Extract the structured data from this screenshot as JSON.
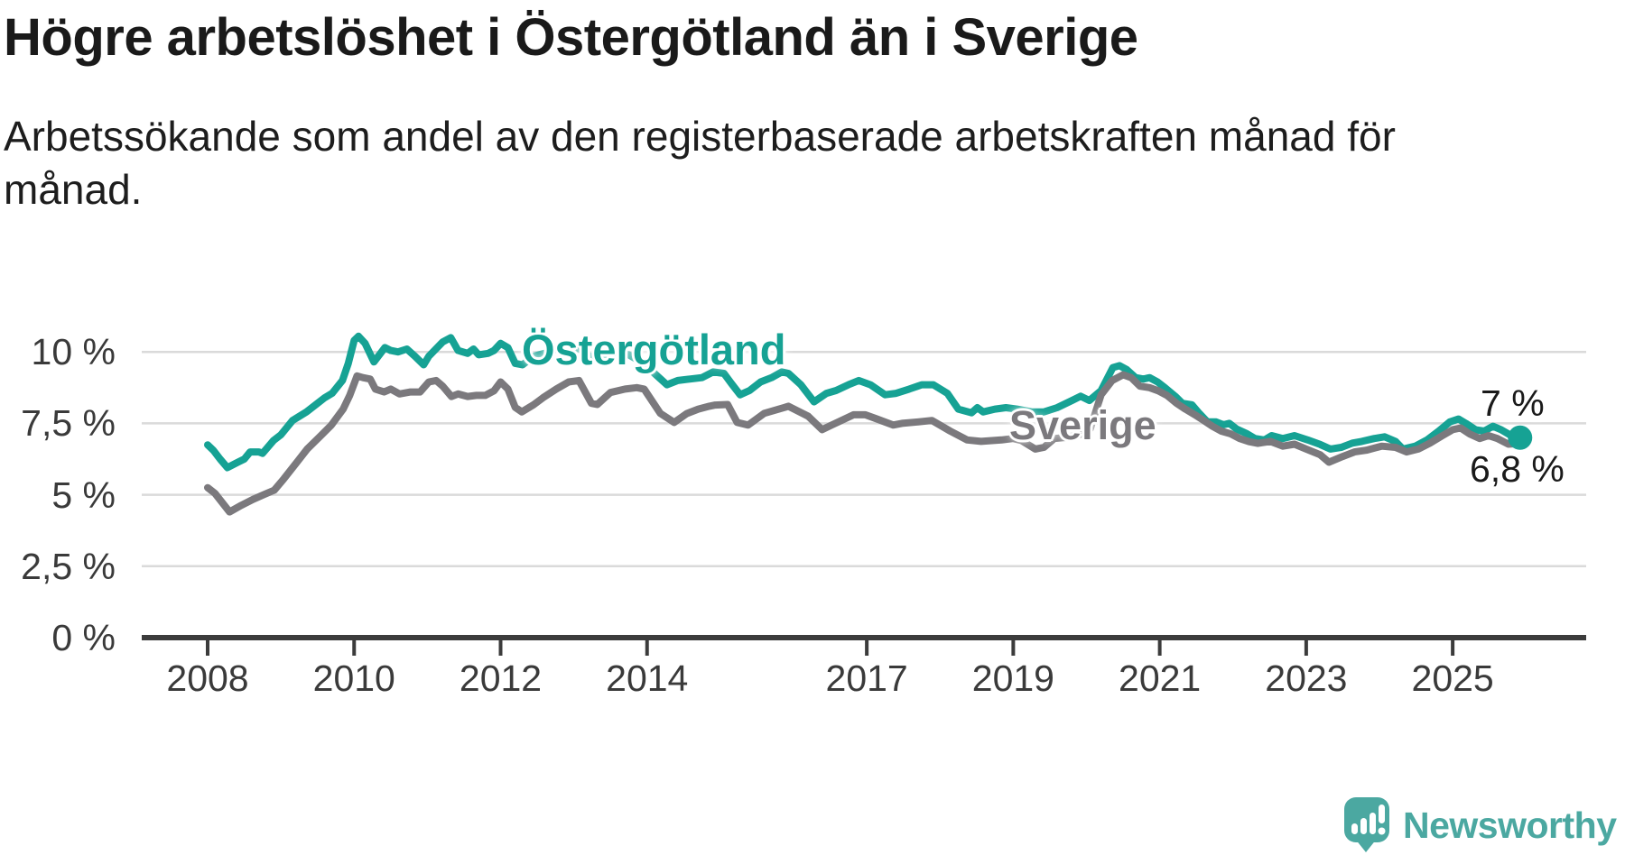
{
  "header": {
    "title": "Högre arbetslöshet i Östergötland än i Sverige",
    "subtitle": "Arbetssökande som andel av den registerbaserade arbetskraften månad för månad."
  },
  "footer": {
    "brand": "Newsworthy",
    "logo_icon": "speech-bubble-bar-chart-icon"
  },
  "colors": {
    "accent_teal": "#16A294",
    "series_gray": "#7B797D",
    "logo_teal": "#4BA8A1",
    "gridline": "#DADADA",
    "axis": "#3C3C3C",
    "text": "#1A1A1A",
    "tick_text": "#3A3A3A"
  },
  "chart_data": {
    "type": "line",
    "title": "Högre arbetslöshet i Östergötland än i Sverige",
    "subtitle": "Arbetssökande som andel av den registerbaserade arbetskraften månad för månad.",
    "xlabel": "",
    "ylabel": "",
    "grid": "horizontal",
    "legend_position": "inline-labels-on-lines",
    "ylim": [
      0,
      12.5
    ],
    "y_axis": {
      "ticks": [
        0,
        2.5,
        5,
        7.5,
        10
      ],
      "tick_labels": [
        "0 %",
        "2,5 %",
        "5 %",
        "7,5 %",
        "10 %"
      ]
    },
    "x_axis": {
      "ticks": [
        2008,
        2010,
        2012,
        2014,
        2017,
        2019,
        2021,
        2023,
        2025
      ],
      "tick_labels": [
        "2008",
        "2010",
        "2012",
        "2014",
        "2017",
        "2019",
        "2021",
        "2023",
        "2025"
      ],
      "data_start": 2008.0,
      "data_end": 2025.92
    },
    "series": [
      {
        "name": "Östergötland",
        "color": "#16A294",
        "end_label": "7 %",
        "end_value": 7.0,
        "end_dot": true,
        "points": [
          [
            2008.0,
            6.75
          ],
          [
            2008.08,
            6.55
          ],
          [
            2008.17,
            6.25
          ],
          [
            2008.27,
            5.95
          ],
          [
            2008.42,
            6.15
          ],
          [
            2008.5,
            6.25
          ],
          [
            2008.58,
            6.5
          ],
          [
            2008.7,
            6.5
          ],
          [
            2008.75,
            6.45
          ],
          [
            2008.9,
            6.9
          ],
          [
            2009.0,
            7.1
          ],
          [
            2009.16,
            7.6
          ],
          [
            2009.35,
            7.9
          ],
          [
            2009.5,
            8.2
          ],
          [
            2009.6,
            8.4
          ],
          [
            2009.7,
            8.55
          ],
          [
            2009.84,
            9.0
          ],
          [
            2009.92,
            9.6
          ],
          [
            2010.0,
            10.4
          ],
          [
            2010.06,
            10.55
          ],
          [
            2010.15,
            10.3
          ],
          [
            2010.27,
            9.65
          ],
          [
            2010.42,
            10.15
          ],
          [
            2010.5,
            10.05
          ],
          [
            2010.6,
            10.0
          ],
          [
            2010.72,
            10.1
          ],
          [
            2010.83,
            9.85
          ],
          [
            2010.95,
            9.55
          ],
          [
            2011.02,
            9.85
          ],
          [
            2011.21,
            10.35
          ],
          [
            2011.32,
            10.5
          ],
          [
            2011.42,
            10.05
          ],
          [
            2011.55,
            9.95
          ],
          [
            2011.63,
            10.1
          ],
          [
            2011.7,
            9.9
          ],
          [
            2011.83,
            9.95
          ],
          [
            2011.91,
            10.05
          ],
          [
            2012.0,
            10.3
          ],
          [
            2012.1,
            10.15
          ],
          [
            2012.2,
            9.6
          ],
          [
            2012.3,
            9.55
          ],
          [
            2012.45,
            9.85
          ],
          [
            2012.6,
            9.95
          ],
          [
            2012.75,
            10.1
          ],
          [
            2012.92,
            10.2
          ],
          [
            2013.08,
            10.1
          ],
          [
            2013.25,
            9.8
          ],
          [
            2013.42,
            9.9
          ],
          [
            2013.58,
            10.0
          ],
          [
            2013.75,
            9.9
          ],
          [
            2013.92,
            9.65
          ],
          [
            2014.1,
            9.25
          ],
          [
            2014.27,
            8.85
          ],
          [
            2014.42,
            9.0
          ],
          [
            2014.58,
            9.05
          ],
          [
            2014.75,
            9.1
          ],
          [
            2014.9,
            9.3
          ],
          [
            2015.05,
            9.25
          ],
          [
            2015.15,
            8.9
          ],
          [
            2015.27,
            8.5
          ],
          [
            2015.4,
            8.65
          ],
          [
            2015.55,
            8.95
          ],
          [
            2015.7,
            9.1
          ],
          [
            2015.84,
            9.3
          ],
          [
            2015.93,
            9.25
          ],
          [
            2016.1,
            8.85
          ],
          [
            2016.28,
            8.25
          ],
          [
            2016.45,
            8.55
          ],
          [
            2016.58,
            8.65
          ],
          [
            2016.75,
            8.85
          ],
          [
            2016.89,
            9.0
          ],
          [
            2017.05,
            8.85
          ],
          [
            2017.25,
            8.5
          ],
          [
            2017.4,
            8.55
          ],
          [
            2017.58,
            8.7
          ],
          [
            2017.75,
            8.85
          ],
          [
            2017.91,
            8.85
          ],
          [
            2018.1,
            8.55
          ],
          [
            2018.25,
            8.0
          ],
          [
            2018.43,
            7.87
          ],
          [
            2018.51,
            8.05
          ],
          [
            2018.59,
            7.9
          ],
          [
            2018.75,
            8.0
          ],
          [
            2018.9,
            8.05
          ],
          [
            2019.05,
            8.0
          ],
          [
            2019.25,
            7.9
          ],
          [
            2019.42,
            7.9
          ],
          [
            2019.6,
            8.05
          ],
          [
            2019.8,
            8.3
          ],
          [
            2019.92,
            8.45
          ],
          [
            2020.04,
            8.3
          ],
          [
            2020.2,
            8.65
          ],
          [
            2020.36,
            9.45
          ],
          [
            2020.45,
            9.52
          ],
          [
            2020.55,
            9.38
          ],
          [
            2020.67,
            9.1
          ],
          [
            2020.78,
            9.05
          ],
          [
            2020.86,
            9.1
          ],
          [
            2020.97,
            8.95
          ],
          [
            2021.07,
            8.75
          ],
          [
            2021.21,
            8.45
          ],
          [
            2021.31,
            8.2
          ],
          [
            2021.44,
            8.15
          ],
          [
            2021.54,
            7.85
          ],
          [
            2021.65,
            7.55
          ],
          [
            2021.77,
            7.55
          ],
          [
            2021.87,
            7.45
          ],
          [
            2021.95,
            7.5
          ],
          [
            2022.05,
            7.3
          ],
          [
            2022.18,
            7.15
          ],
          [
            2022.3,
            6.97
          ],
          [
            2022.43,
            6.92
          ],
          [
            2022.53,
            7.07
          ],
          [
            2022.68,
            6.97
          ],
          [
            2022.84,
            7.07
          ],
          [
            2023.02,
            6.92
          ],
          [
            2023.19,
            6.76
          ],
          [
            2023.33,
            6.6
          ],
          [
            2023.48,
            6.66
          ],
          [
            2023.63,
            6.81
          ],
          [
            2023.76,
            6.87
          ],
          [
            2023.93,
            6.97
          ],
          [
            2024.07,
            7.03
          ],
          [
            2024.22,
            6.87
          ],
          [
            2024.32,
            6.6
          ],
          [
            2024.49,
            6.7
          ],
          [
            2024.65,
            6.92
          ],
          [
            2024.81,
            7.23
          ],
          [
            2024.96,
            7.55
          ],
          [
            2025.08,
            7.65
          ],
          [
            2025.18,
            7.5
          ],
          [
            2025.31,
            7.28
          ],
          [
            2025.43,
            7.23
          ],
          [
            2025.55,
            7.4
          ],
          [
            2025.66,
            7.28
          ],
          [
            2025.8,
            7.07
          ],
          [
            2025.92,
            7.0
          ]
        ]
      },
      {
        "name": "Sverige",
        "color": "#7B797D",
        "end_label": "6,8 %",
        "end_value": 6.8,
        "end_dot": false,
        "points": [
          [
            2008.0,
            5.25
          ],
          [
            2008.1,
            5.05
          ],
          [
            2008.3,
            4.4
          ],
          [
            2008.46,
            4.63
          ],
          [
            2008.62,
            4.84
          ],
          [
            2008.79,
            5.03
          ],
          [
            2008.91,
            5.16
          ],
          [
            2009.04,
            5.56
          ],
          [
            2009.2,
            6.08
          ],
          [
            2009.36,
            6.6
          ],
          [
            2009.53,
            7.03
          ],
          [
            2009.69,
            7.44
          ],
          [
            2009.85,
            8.0
          ],
          [
            2009.94,
            8.48
          ],
          [
            2010.04,
            9.16
          ],
          [
            2010.12,
            9.1
          ],
          [
            2010.22,
            9.05
          ],
          [
            2010.29,
            8.7
          ],
          [
            2010.41,
            8.6
          ],
          [
            2010.5,
            8.7
          ],
          [
            2010.62,
            8.53
          ],
          [
            2010.77,
            8.6
          ],
          [
            2010.9,
            8.6
          ],
          [
            2011.02,
            8.95
          ],
          [
            2011.12,
            9.0
          ],
          [
            2011.21,
            8.8
          ],
          [
            2011.33,
            8.44
          ],
          [
            2011.42,
            8.53
          ],
          [
            2011.55,
            8.44
          ],
          [
            2011.67,
            8.48
          ],
          [
            2011.79,
            8.48
          ],
          [
            2011.91,
            8.64
          ],
          [
            2012.0,
            8.95
          ],
          [
            2012.1,
            8.7
          ],
          [
            2012.2,
            8.06
          ],
          [
            2012.29,
            7.9
          ],
          [
            2012.45,
            8.15
          ],
          [
            2012.58,
            8.4
          ],
          [
            2012.76,
            8.7
          ],
          [
            2012.93,
            8.95
          ],
          [
            2013.07,
            9.0
          ],
          [
            2013.24,
            8.2
          ],
          [
            2013.32,
            8.16
          ],
          [
            2013.5,
            8.58
          ],
          [
            2013.7,
            8.7
          ],
          [
            2013.86,
            8.75
          ],
          [
            2013.96,
            8.7
          ],
          [
            2014.18,
            7.85
          ],
          [
            2014.37,
            7.53
          ],
          [
            2014.54,
            7.84
          ],
          [
            2014.7,
            8.0
          ],
          [
            2014.85,
            8.1
          ],
          [
            2014.93,
            8.14
          ],
          [
            2015.1,
            8.16
          ],
          [
            2015.23,
            7.53
          ],
          [
            2015.38,
            7.44
          ],
          [
            2015.6,
            7.85
          ],
          [
            2015.88,
            8.06
          ],
          [
            2015.93,
            8.1
          ],
          [
            2016.2,
            7.75
          ],
          [
            2016.39,
            7.28
          ],
          [
            2016.52,
            7.44
          ],
          [
            2016.82,
            7.8
          ],
          [
            2016.98,
            7.8
          ],
          [
            2017.13,
            7.66
          ],
          [
            2017.36,
            7.44
          ],
          [
            2017.48,
            7.5
          ],
          [
            2017.7,
            7.55
          ],
          [
            2017.89,
            7.6
          ],
          [
            2018.14,
            7.23
          ],
          [
            2018.37,
            6.92
          ],
          [
            2018.56,
            6.87
          ],
          [
            2018.84,
            6.92
          ],
          [
            2019.0,
            6.97
          ],
          [
            2019.11,
            6.9
          ],
          [
            2019.3,
            6.6
          ],
          [
            2019.42,
            6.66
          ],
          [
            2019.56,
            6.97
          ],
          [
            2019.7,
            7.0
          ],
          [
            2019.9,
            7.1
          ],
          [
            2020.05,
            7.3
          ],
          [
            2020.2,
            8.5
          ],
          [
            2020.35,
            9.0
          ],
          [
            2020.5,
            9.2
          ],
          [
            2020.61,
            9.1
          ],
          [
            2020.73,
            8.8
          ],
          [
            2020.86,
            8.75
          ],
          [
            2020.98,
            8.64
          ],
          [
            2021.1,
            8.48
          ],
          [
            2021.23,
            8.2
          ],
          [
            2021.35,
            8.0
          ],
          [
            2021.48,
            7.8
          ],
          [
            2021.6,
            7.6
          ],
          [
            2021.72,
            7.4
          ],
          [
            2021.84,
            7.23
          ],
          [
            2021.97,
            7.13
          ],
          [
            2022.09,
            6.97
          ],
          [
            2022.22,
            6.86
          ],
          [
            2022.34,
            6.8
          ],
          [
            2022.51,
            6.87
          ],
          [
            2022.68,
            6.7
          ],
          [
            2022.84,
            6.77
          ],
          [
            2023.0,
            6.6
          ],
          [
            2023.19,
            6.4
          ],
          [
            2023.31,
            6.14
          ],
          [
            2023.5,
            6.34
          ],
          [
            2023.66,
            6.5
          ],
          [
            2023.82,
            6.56
          ],
          [
            2024.03,
            6.7
          ],
          [
            2024.22,
            6.66
          ],
          [
            2024.37,
            6.5
          ],
          [
            2024.53,
            6.6
          ],
          [
            2024.69,
            6.81
          ],
          [
            2024.86,
            7.07
          ],
          [
            2025.0,
            7.28
          ],
          [
            2025.11,
            7.34
          ],
          [
            2025.23,
            7.13
          ],
          [
            2025.37,
            6.97
          ],
          [
            2025.49,
            7.07
          ],
          [
            2025.61,
            6.97
          ],
          [
            2025.76,
            6.77
          ],
          [
            2025.92,
            6.8
          ]
        ]
      }
    ]
  }
}
